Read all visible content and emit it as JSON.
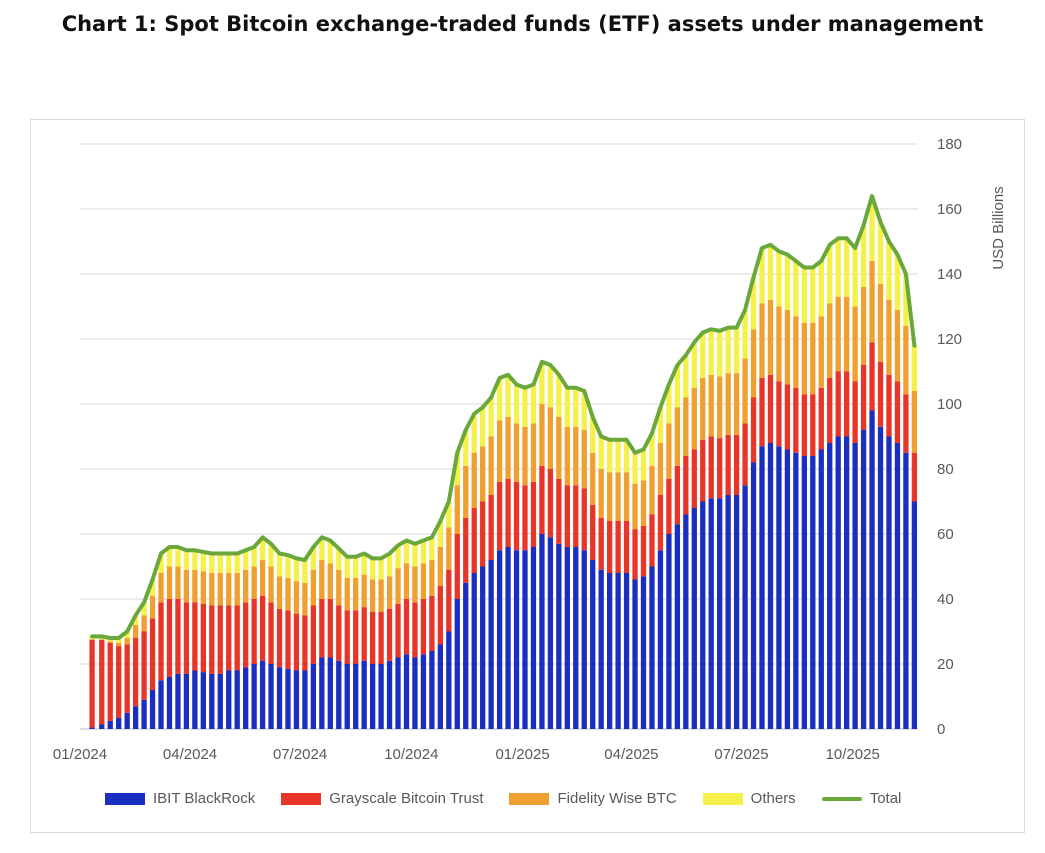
{
  "title": "Chart 1: Spot Bitcoin exchange-traded funds (ETF) assets under management",
  "chart_data": {
    "type": "bar",
    "stacked": true,
    "title": "Chart 1: Spot Bitcoin exchange-traded funds (ETF) assets under management",
    "ylabel": "USD Billions",
    "xlabel": "",
    "ylim": [
      0,
      180
    ],
    "yticks": [
      0,
      20,
      40,
      60,
      80,
      100,
      120,
      140,
      160,
      180
    ],
    "xtick_labels": [
      "01/2024",
      "04/2024",
      "07/2024",
      "10/2024",
      "01/2025",
      "04/2025",
      "07/2025",
      "10/2025"
    ],
    "grid": true,
    "y_axis_side": "right",
    "legend_position": "bottom",
    "x": [
      "2024-01-11",
      "2024-01-19",
      "2024-01-26",
      "2024-02-02",
      "2024-02-09",
      "2024-02-16",
      "2024-02-23",
      "2024-03-01",
      "2024-03-08",
      "2024-03-15",
      "2024-03-22",
      "2024-03-29",
      "2024-04-05",
      "2024-04-12",
      "2024-04-19",
      "2024-04-26",
      "2024-05-03",
      "2024-05-10",
      "2024-05-17",
      "2024-05-24",
      "2024-05-31",
      "2024-06-07",
      "2024-06-14",
      "2024-06-21",
      "2024-06-28",
      "2024-07-05",
      "2024-07-12",
      "2024-07-19",
      "2024-07-26",
      "2024-08-02",
      "2024-08-09",
      "2024-08-16",
      "2024-08-23",
      "2024-08-30",
      "2024-09-06",
      "2024-09-13",
      "2024-09-20",
      "2024-09-27",
      "2024-10-04",
      "2024-10-11",
      "2024-10-18",
      "2024-10-25",
      "2024-11-01",
      "2024-11-08",
      "2024-11-15",
      "2024-11-22",
      "2024-11-29",
      "2024-12-06",
      "2024-12-13",
      "2024-12-20",
      "2024-12-27",
      "2025-01-03",
      "2025-01-10",
      "2025-01-17",
      "2025-01-24",
      "2025-01-31",
      "2025-02-07",
      "2025-02-14",
      "2025-02-21",
      "2025-02-28",
      "2025-03-07",
      "2025-03-14",
      "2025-03-21",
      "2025-03-28",
      "2025-04-04",
      "2025-04-11",
      "2025-04-18",
      "2025-04-25",
      "2025-05-02",
      "2025-05-09",
      "2025-05-16",
      "2025-05-23",
      "2025-05-30",
      "2025-06-06",
      "2025-06-13",
      "2025-06-20",
      "2025-06-27",
      "2025-07-04",
      "2025-07-11",
      "2025-07-18",
      "2025-07-25",
      "2025-08-01",
      "2025-08-08",
      "2025-08-15",
      "2025-08-22",
      "2025-08-29",
      "2025-09-05",
      "2025-09-12",
      "2025-09-19",
      "2025-09-26",
      "2025-10-03",
      "2025-10-10",
      "2025-10-17",
      "2025-10-24",
      "2025-10-31",
      "2025-11-07",
      "2025-11-14",
      "2025-11-21"
    ],
    "series": [
      {
        "name": "IBIT BlackRock",
        "color": "#1a2fbf",
        "kind": "bar",
        "values": [
          0.5,
          1.5,
          2.5,
          3.5,
          5,
          7,
          9,
          12,
          15,
          16,
          17,
          17,
          18,
          17.5,
          17,
          17,
          18,
          18,
          19,
          20,
          21,
          20,
          19,
          18.5,
          18,
          18,
          20,
          22,
          22,
          21,
          20,
          20,
          21,
          20,
          20,
          21,
          22,
          23,
          22,
          23,
          24,
          26,
          30,
          40,
          45,
          48,
          50,
          52,
          55,
          56,
          55,
          55,
          56,
          60,
          59,
          57,
          56,
          56,
          55,
          52,
          49,
          48,
          48,
          48,
          46,
          47,
          50,
          55,
          60,
          63,
          66,
          68,
          70,
          71,
          71,
          72,
          72,
          75,
          82,
          87,
          88,
          87,
          86,
          85,
          84,
          84,
          86,
          88,
          90,
          90,
          88,
          92,
          98,
          93,
          90,
          88,
          85,
          70
        ]
      },
      {
        "name": "Grayscale Bitcoin Trust",
        "color": "#e8352a",
        "kind": "bar",
        "values": [
          27,
          26,
          24,
          22,
          21,
          21,
          21,
          22,
          24,
          24,
          23,
          22,
          21,
          21,
          21,
          21,
          20,
          20,
          20,
          20,
          20,
          19,
          18,
          18,
          17.5,
          17,
          18,
          18,
          18,
          17,
          16.5,
          16.5,
          16.5,
          16,
          16,
          16,
          16.5,
          17,
          17,
          17,
          17,
          18,
          19,
          20,
          20,
          20,
          20,
          20,
          21,
          21,
          21,
          20,
          20,
          21,
          21,
          20,
          19,
          19,
          19,
          17,
          16,
          16,
          16,
          16,
          15.5,
          15.5,
          16,
          17,
          17,
          18,
          18,
          18,
          19,
          19,
          18.5,
          18.5,
          18.5,
          19,
          20,
          21,
          21,
          20,
          20,
          20,
          19,
          19,
          19,
          20,
          20,
          20,
          19,
          20,
          21,
          20,
          19,
          19,
          18,
          15
        ]
      },
      {
        "name": "Fidelity Wise BTC",
        "color": "#f0a030",
        "kind": "bar",
        "values": [
          0,
          0,
          0.5,
          1,
          2,
          4,
          5,
          7,
          9,
          10,
          10,
          10,
          10,
          10,
          10,
          10,
          10,
          10,
          10,
          10,
          11,
          11,
          10,
          10,
          10,
          10,
          11,
          12,
          11,
          11,
          10,
          10,
          10,
          10,
          10,
          10,
          11,
          11,
          11,
          11,
          11,
          12,
          13,
          15,
          16,
          17,
          17,
          18,
          19,
          19,
          18,
          18,
          18,
          19,
          19,
          19,
          18,
          18,
          18,
          16,
          15,
          15,
          15,
          15,
          14,
          14,
          15,
          16,
          17,
          18,
          18,
          19,
          19,
          19,
          19,
          19,
          19,
          20,
          21,
          23,
          23,
          23,
          23,
          22,
          22,
          22,
          22,
          23,
          23,
          23,
          23,
          24,
          25,
          24,
          23,
          22,
          21,
          19
        ]
      },
      {
        "name": "Others",
        "color": "#f5f04a",
        "kind": "bar",
        "values": [
          1,
          1,
          1,
          1.5,
          2,
          3,
          4,
          5,
          6,
          6,
          6,
          6,
          6,
          6,
          6,
          6,
          6,
          6,
          6,
          6,
          7,
          7,
          7,
          7,
          7,
          7,
          7,
          7,
          7,
          6.5,
          6.5,
          6.5,
          6.5,
          6.5,
          6.5,
          7,
          7,
          7,
          7,
          7,
          7,
          8,
          8,
          10,
          11,
          12,
          12,
          12,
          13,
          13,
          12,
          12,
          12,
          13,
          13,
          13,
          12,
          12,
          12,
          11,
          10,
          10,
          10,
          10,
          9.5,
          9.5,
          10,
          11,
          12,
          13,
          13,
          14,
          14,
          14,
          14,
          14,
          14,
          15,
          16,
          17,
          17,
          17,
          17,
          17,
          17,
          17,
          17,
          18,
          18,
          18,
          18,
          19,
          20,
          19,
          18,
          17,
          16,
          14
        ]
      },
      {
        "name": "Total",
        "color": "#6aa83c",
        "kind": "line",
        "values": [
          28.5,
          28.5,
          28,
          28,
          30,
          35,
          39,
          46,
          54,
          56,
          56,
          55,
          55,
          54.5,
          54,
          54,
          54,
          54,
          55,
          56,
          59,
          57,
          54,
          53.5,
          52.5,
          52,
          56,
          59,
          58,
          55.5,
          53,
          53,
          54,
          52.5,
          52.5,
          54,
          56.5,
          58,
          57,
          58,
          59,
          64,
          70,
          85,
          92,
          97,
          99,
          102,
          108,
          109,
          106,
          105,
          106,
          113,
          112,
          109,
          105,
          105,
          104,
          96,
          90,
          89,
          89,
          89,
          85,
          86,
          91,
          99,
          106,
          112,
          115,
          119,
          122,
          123,
          122.5,
          123.5,
          123.5,
          129,
          139,
          148,
          149,
          147,
          146,
          144,
          142,
          142,
          144,
          149,
          151,
          151,
          148,
          155,
          164,
          156,
          150,
          146,
          140,
          118
        ]
      }
    ]
  },
  "legend": [
    {
      "label": "IBIT BlackRock",
      "color": "#1a2fbf",
      "kind": "bar"
    },
    {
      "label": "Grayscale Bitcoin Trust",
      "color": "#e8352a",
      "kind": "bar"
    },
    {
      "label": "Fidelity Wise BTC",
      "color": "#f0a030",
      "kind": "bar"
    },
    {
      "label": "Others",
      "color": "#f5f04a",
      "kind": "bar"
    },
    {
      "label": "Total",
      "color": "#6aa83c",
      "kind": "line"
    }
  ]
}
